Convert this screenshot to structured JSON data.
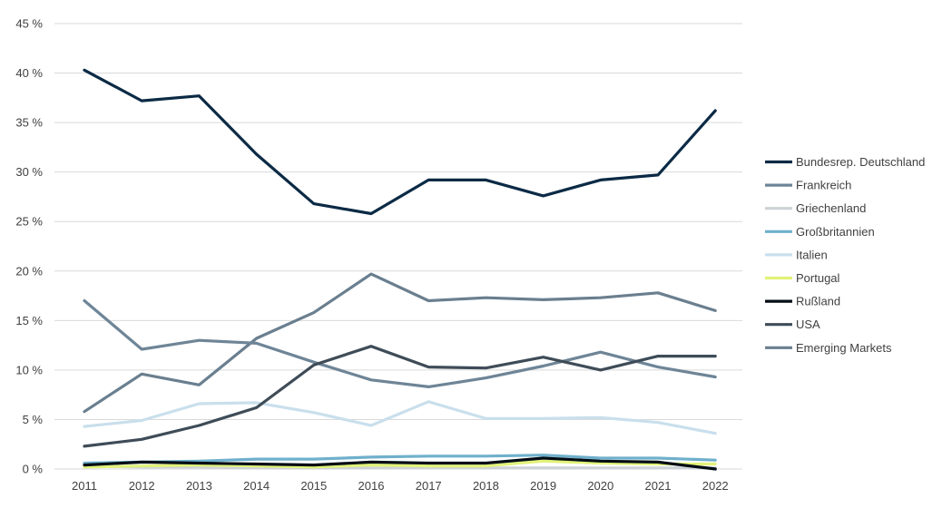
{
  "chart_data": {
    "type": "line",
    "title": "",
    "xlabel": "",
    "ylabel": "",
    "ylim": [
      0,
      45
    ],
    "y_ticks": [
      "0 %",
      "5 %",
      "10 %",
      "15 %",
      "20 %",
      "25 %",
      "30 %",
      "35 %",
      "40 %",
      "45 %"
    ],
    "x": [
      "2011",
      "2012",
      "2013",
      "2014",
      "2015",
      "2016",
      "2017",
      "2018",
      "2019",
      "2020",
      "2021",
      "2022"
    ],
    "grid": "horizontal",
    "legend_position": "right",
    "series": [
      {
        "name": "Bundesrep. Deutschland",
        "color": "#0b2a45",
        "values": [
          40.3,
          37.2,
          37.7,
          31.8,
          26.8,
          25.8,
          29.2,
          29.2,
          27.6,
          29.2,
          29.7,
          36.2
        ]
      },
      {
        "name": "Frankreich",
        "color": "#6e8597",
        "values": [
          17.0,
          12.1,
          13.0,
          12.7,
          10.8,
          9.0,
          8.3,
          9.2,
          10.4,
          11.8,
          10.3,
          9.3
        ]
      },
      {
        "name": "Griechenland",
        "color": "#cdd2d6",
        "values": [
          0.3,
          0.2,
          0.2,
          0.1,
          0.1,
          0.1,
          0.1,
          0.1,
          0.1,
          0.1,
          0.1,
          0.1
        ]
      },
      {
        "name": "Großbritannien",
        "color": "#6fb0cc",
        "values": [
          0.6,
          0.7,
          0.8,
          1.0,
          1.0,
          1.2,
          1.3,
          1.3,
          1.4,
          1.1,
          1.1,
          0.9
        ]
      },
      {
        "name": "Italien",
        "color": "#c9dfec",
        "values": [
          4.3,
          4.9,
          6.6,
          6.7,
          5.7,
          4.4,
          6.8,
          5.1,
          5.1,
          5.2,
          4.7,
          3.6
        ]
      },
      {
        "name": "Portugal",
        "color": "#e2f279",
        "values": [
          0.2,
          0.3,
          0.4,
          0.3,
          0.2,
          0.4,
          0.3,
          0.3,
          0.8,
          0.6,
          0.5,
          0.5
        ]
      },
      {
        "name": "Rußland",
        "color": "#000c14",
        "values": [
          0.4,
          0.7,
          0.6,
          0.5,
          0.4,
          0.7,
          0.6,
          0.6,
          1.1,
          0.8,
          0.7,
          0.0
        ]
      },
      {
        "name": "USA",
        "color": "#3e4c58",
        "values": [
          2.3,
          3.0,
          4.4,
          6.2,
          10.5,
          12.4,
          10.3,
          10.2,
          11.3,
          10.0,
          11.4,
          11.4
        ]
      },
      {
        "name": "Emerging Markets",
        "color": "#6a7f8f",
        "values": [
          5.8,
          9.6,
          8.5,
          13.2,
          15.8,
          19.7,
          17.0,
          17.3,
          17.1,
          17.3,
          17.8,
          16.0
        ]
      }
    ]
  }
}
